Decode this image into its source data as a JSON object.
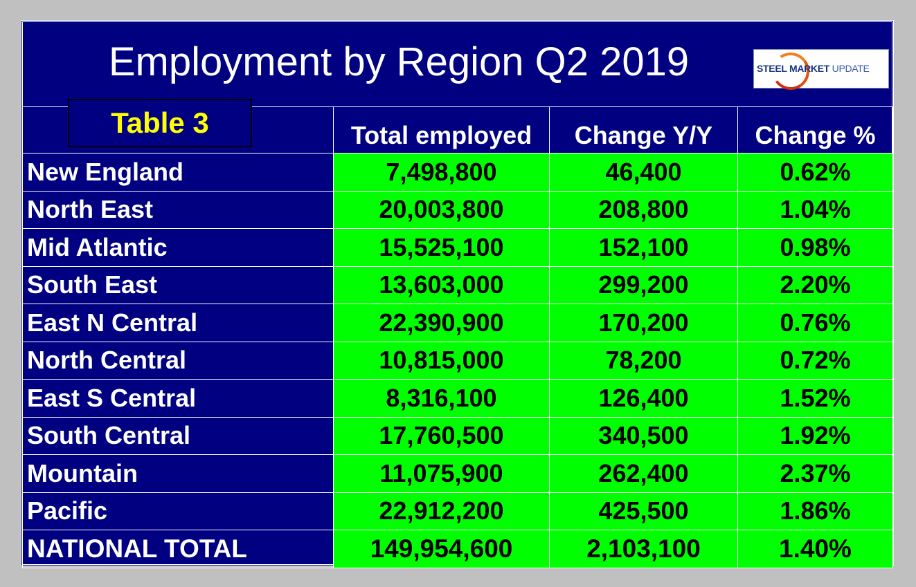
{
  "title": "Employment by Region Q2 2019",
  "logo": {
    "text": "STEEL MARKET UPDATE",
    "colors": {
      "navy": "#173680",
      "orange": "#f08020"
    }
  },
  "tag": "Table 3",
  "colors": {
    "background": "#000080",
    "cell": "#00ff00",
    "tag_text": "#ffff00"
  },
  "chart_data": {
    "type": "table",
    "title": "Employment by Region Q2 2019",
    "columns": [
      "",
      "Total employed",
      "Change Y/Y",
      "Change %"
    ],
    "rows": [
      [
        "New England",
        "7,498,800",
        "46,400",
        "0.62%"
      ],
      [
        "North East",
        "20,003,800",
        "208,800",
        "1.04%"
      ],
      [
        "Mid Atlantic",
        "15,525,100",
        "152,100",
        "0.98%"
      ],
      [
        "South East",
        "13,603,000",
        "299,200",
        "2.20%"
      ],
      [
        "East N Central",
        "22,390,900",
        "170,200",
        "0.76%"
      ],
      [
        "North Central",
        "10,815,000",
        "78,200",
        "0.72%"
      ],
      [
        "East S Central",
        "8,316,100",
        "126,400",
        "1.52%"
      ],
      [
        "South Central",
        "17,760,500",
        "340,500",
        "1.92%"
      ],
      [
        "Mountain",
        "11,075,900",
        "262,400",
        "2.37%"
      ],
      [
        "Pacific",
        "22,912,200",
        "425,500",
        "1.86%"
      ],
      [
        "NATIONAL TOTAL",
        "149,954,600",
        "2,103,100",
        "1.40%"
      ]
    ]
  }
}
